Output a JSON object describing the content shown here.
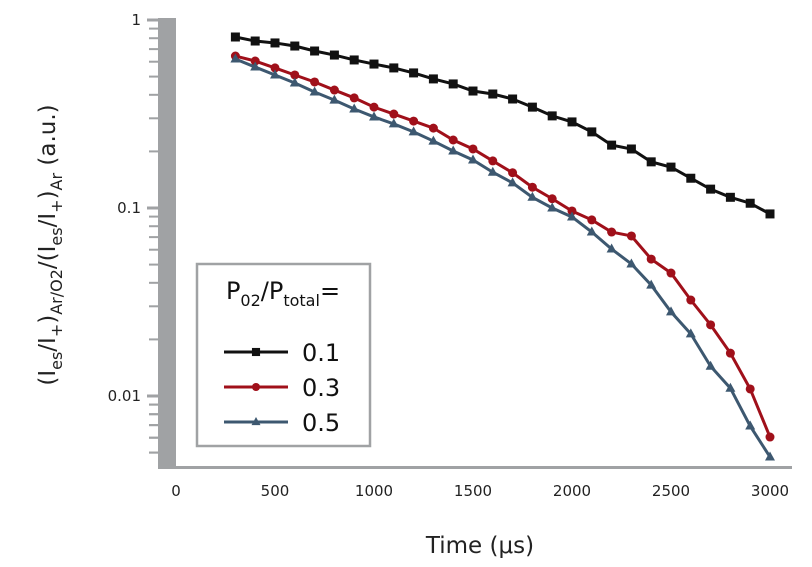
{
  "chart_data": {
    "type": "line",
    "title": "",
    "xlabel": "Time (μs)",
    "ylabel": {
      "parts": [
        "(I",
        "es",
        "/I",
        "+",
        ")",
        "Ar/O2",
        "/(I",
        "es",
        "/I",
        "+",
        ")",
        "Ar",
        " (a.u.)"
      ],
      "sub": [
        false,
        true,
        false,
        true,
        false,
        true,
        false,
        true,
        false,
        true,
        false,
        true,
        false
      ]
    },
    "xlim": [
      0,
      3000
    ],
    "ylim": [
      0.00414,
      1
    ],
    "yscale": "log",
    "xticks": [
      0,
      500,
      1000,
      1500,
      2000,
      2500,
      3000
    ],
    "xtick_labels": [
      "0",
      "500",
      "1000",
      "1500",
      "2000",
      "2500",
      "3000"
    ],
    "yticks": [
      1,
      0.1,
      0.01
    ],
    "ytick_labels": [
      "1",
      "0.1",
      "0.01"
    ],
    "legend": {
      "title_parts": [
        "P",
        "02",
        "/P",
        "total",
        "="
      ],
      "title_sub": [
        false,
        true,
        false,
        true,
        false
      ],
      "placement": "lower-left"
    },
    "x": [
      300,
      400,
      500,
      600,
      700,
      800,
      900,
      1000,
      1100,
      1200,
      1300,
      1400,
      1500,
      1600,
      1700,
      1800,
      1900,
      2000,
      2100,
      2200,
      2300,
      2400,
      2500,
      2600,
      2700,
      2800,
      2900,
      3000
    ],
    "series": [
      {
        "name": "0.1",
        "color": "#111111",
        "marker": "square",
        "values": [
          0.812,
          0.773,
          0.755,
          0.727,
          0.684,
          0.651,
          0.613,
          0.583,
          0.556,
          0.523,
          0.486,
          0.457,
          0.419,
          0.404,
          0.38,
          0.344,
          0.309,
          0.287,
          0.254,
          0.216,
          0.206,
          0.176,
          0.165,
          0.144,
          0.126,
          0.114,
          0.106,
          0.093
        ]
      },
      {
        "name": "0.3",
        "color": "#a0101a",
        "marker": "circle",
        "values": [
          0.643,
          0.605,
          0.556,
          0.51,
          0.468,
          0.424,
          0.385,
          0.344,
          0.316,
          0.29,
          0.266,
          0.23,
          0.206,
          0.178,
          0.154,
          0.129,
          0.112,
          0.0964,
          0.0864,
          0.0745,
          0.071,
          0.0535,
          0.0451,
          0.0324,
          0.0239,
          0.0169,
          0.0109,
          0.00605
        ]
      },
      {
        "name": "0.5",
        "color": "#3d5870",
        "marker": "triangle",
        "values": [
          0.62,
          0.562,
          0.51,
          0.462,
          0.414,
          0.375,
          0.336,
          0.305,
          0.28,
          0.254,
          0.227,
          0.201,
          0.18,
          0.155,
          0.136,
          0.114,
          0.1,
          0.0896,
          0.0745,
          0.0605,
          0.0504,
          0.0389,
          0.028,
          0.0214,
          0.0144,
          0.011,
          0.00692,
          0.00474
        ]
      }
    ]
  }
}
